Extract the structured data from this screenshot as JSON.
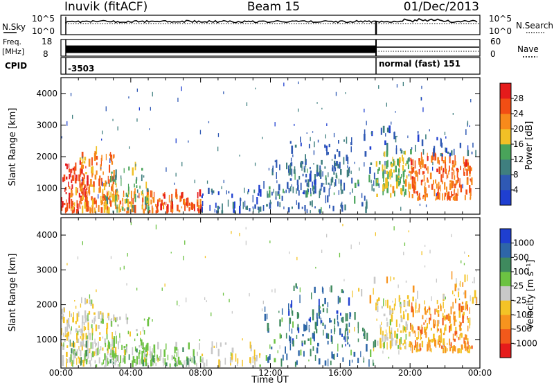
{
  "header": {
    "station": "Inuvik (fitACF)",
    "beam": "Beam 15",
    "date": "01/Dec/2013"
  },
  "status_panels": {
    "nsky_label": "N.Sky",
    "nsky_tick_top": "10^5",
    "nsky_tick_bottom": "10^0",
    "nsearch_label": "N.Search",
    "nsearch_tick_top": "10^5",
    "nsearch_tick_bottom": "10^0",
    "freq_label": "Freq.",
    "freq_unit": "[MHz]",
    "freq_tick_top": "18",
    "freq_tick_bottom": "8",
    "nave_label": "Nave",
    "nave_tick_top": "60",
    "nave_tick_bottom": "0",
    "cpid_label": "CPID",
    "cpid_left": "-3503",
    "cpid_right": "normal (fast) 151"
  },
  "chart_data": [
    {
      "type": "heatmap",
      "name": "power",
      "ylabel": "Slant Range [km]",
      "yticks": [
        1000,
        2000,
        3000,
        4000
      ],
      "ylim": [
        180,
        4500
      ],
      "xlim": [
        0,
        24
      ],
      "colorbar_label": "Power [dB]",
      "colorbar_ticks": [
        "28",
        "24",
        "20",
        "16",
        "12",
        "8",
        "4"
      ],
      "colors": [
        "#1f3fd0",
        "#2f59b4",
        "#3f7f7f",
        "#49a45a",
        "#f1c026",
        "#f78a1b",
        "#f24e14",
        "#e51b1b"
      ]
    },
    {
      "type": "heatmap",
      "name": "velocity",
      "ylabel": "Slant Range [km]",
      "yticks": [
        1000,
        2000,
        3000,
        4000
      ],
      "ylim": [
        180,
        4500
      ],
      "xlim": [
        0,
        24
      ],
      "xlabel": "Time UT",
      "xticks": [
        "00:00",
        "04:00",
        "08:00",
        "12:00",
        "16:00",
        "20:00",
        "00:00"
      ],
      "colorbar_label": "Velocity [m s⁻¹]",
      "colorbar_ticks": [
        "1000",
        "500",
        "100",
        "25",
        "-25",
        "-100",
        "-500",
        "-1000"
      ],
      "colors": [
        "#1f3fd0",
        "#2e66a8",
        "#3f8a5e",
        "#6cc242",
        "#c8c8c8",
        "#f3c326",
        "#f7931e",
        "#f2591b",
        "#e51b1b"
      ]
    }
  ]
}
